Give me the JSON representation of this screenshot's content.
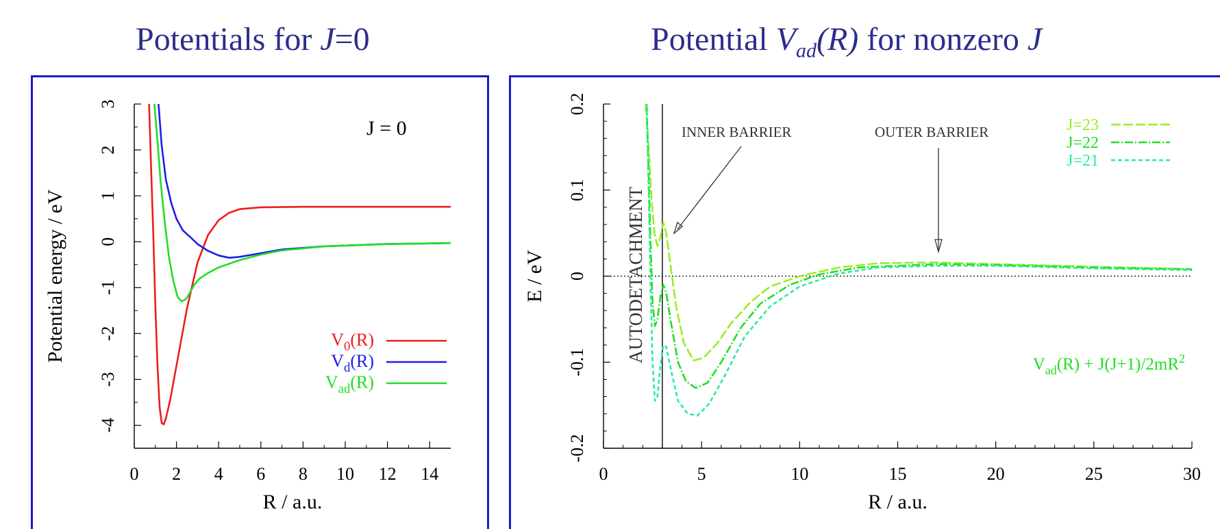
{
  "titles": {
    "left": {
      "pre": "Potentials for ",
      "var": "J",
      "post": "=0"
    },
    "right": {
      "pre": "Potential ",
      "var": "V",
      "sub": "ad",
      "arg": "(R)",
      "post": " for nonzero ",
      "var2": "J"
    }
  },
  "colors": {
    "title": "#2d2d8c",
    "frame": "#1a1acc",
    "v0": "#ee1c1c",
    "vd": "#1c1cee",
    "vad": "#22dd22",
    "j23": "#99ee22",
    "j22": "#22dd22",
    "j21": "#22ee99"
  },
  "chart_data": [
    {
      "type": "line",
      "xlabel": "R / a.u.",
      "ylabel": "Potential energy / eV",
      "xlim": [
        0,
        15
      ],
      "ylim": [
        -4.5,
        3
      ],
      "xticks": [
        "0",
        "2",
        "4",
        "6",
        "8",
        "10",
        "12",
        "14"
      ],
      "yticks": [
        "-4",
        "-3",
        "-2",
        "-1",
        "0",
        "1",
        "2",
        "3"
      ],
      "annotation": "J = 0",
      "legend_position": "bottom-right",
      "series": [
        {
          "name": "V0(R)",
          "label": "V",
          "sub": "0",
          "arg": "(R)",
          "color": "#ee1c1c",
          "points": [
            [
              0.7,
              3
            ],
            [
              0.8,
              1.6
            ],
            [
              0.9,
              0.2
            ],
            [
              1.0,
              -1.4
            ],
            [
              1.1,
              -2.7
            ],
            [
              1.2,
              -3.6
            ],
            [
              1.3,
              -3.95
            ],
            [
              1.4,
              -3.98
            ],
            [
              1.5,
              -3.85
            ],
            [
              1.7,
              -3.45
            ],
            [
              2.0,
              -2.7
            ],
            [
              2.5,
              -1.45
            ],
            [
              3.0,
              -0.45
            ],
            [
              3.5,
              0.15
            ],
            [
              4.0,
              0.47
            ],
            [
              4.5,
              0.63
            ],
            [
              5.0,
              0.71
            ],
            [
              6.0,
              0.75
            ],
            [
              8.0,
              0.76
            ],
            [
              15.0,
              0.76
            ]
          ]
        },
        {
          "name": "Vd(R)",
          "label": "V",
          "sub": "d",
          "arg": "(R)",
          "color": "#1c1cee",
          "points": [
            [
              1.15,
              3
            ],
            [
              1.3,
              2.1
            ],
            [
              1.5,
              1.35
            ],
            [
              1.75,
              0.85
            ],
            [
              2.0,
              0.5
            ],
            [
              2.3,
              0.25
            ],
            [
              2.7,
              0.08
            ],
            [
              3.0,
              -0.05
            ],
            [
              3.5,
              -0.2
            ],
            [
              4.0,
              -0.3
            ],
            [
              4.5,
              -0.35
            ],
            [
              5.0,
              -0.33
            ],
            [
              6.0,
              -0.25
            ],
            [
              7.0,
              -0.17
            ],
            [
              9.0,
              -0.1
            ],
            [
              12.0,
              -0.05
            ],
            [
              15.0,
              -0.03
            ]
          ]
        },
        {
          "name": "Vad(R)",
          "label": "V",
          "sub": "ad",
          "arg": "(R)",
          "color": "#22dd22",
          "points": [
            [
              0.95,
              3
            ],
            [
              1.1,
              2.2
            ],
            [
              1.25,
              1.3
            ],
            [
              1.45,
              0.4
            ],
            [
              1.65,
              -0.35
            ],
            [
              1.85,
              -0.85
            ],
            [
              2.05,
              -1.2
            ],
            [
              2.25,
              -1.3
            ],
            [
              2.45,
              -1.25
            ],
            [
              2.65,
              -1.1
            ],
            [
              2.85,
              -0.93
            ],
            [
              3.1,
              -0.8
            ],
            [
              3.5,
              -0.68
            ],
            [
              4.0,
              -0.56
            ],
            [
              5.0,
              -0.4
            ],
            [
              6.0,
              -0.28
            ],
            [
              7.0,
              -0.19
            ],
            [
              9.0,
              -0.1
            ],
            [
              12.0,
              -0.05
            ],
            [
              15.0,
              -0.03
            ]
          ]
        }
      ]
    },
    {
      "type": "line",
      "xlabel": "R / a.u.",
      "ylabel": "E / eV",
      "xlim": [
        0,
        30
      ],
      "ylim": [
        -0.2,
        0.2
      ],
      "xticks": [
        "0",
        "5",
        "10",
        "15",
        "20",
        "25",
        "30"
      ],
      "yticks": [
        "-0.2",
        "-0.1",
        "0",
        "0.1",
        "0.2"
      ],
      "reference_lines": {
        "horizontal_y": 0,
        "vertical_x": 3.0
      },
      "annotations": {
        "inner_barrier": "INNER BARRIER",
        "outer_barrier": "OUTER BARRIER",
        "autodetachment": "AUTODETACHMENT",
        "formula": {
          "v": "V",
          "sub": "ad",
          "text": "(R) + J(J+1)/2mR",
          "sup": "2"
        }
      },
      "legend_position": "top-right",
      "series": [
        {
          "name": "J=23",
          "color": "#99ee22",
          "dash": "14 4",
          "points": [
            [
              2.15,
              0.2
            ],
            [
              2.3,
              0.15
            ],
            [
              2.45,
              0.09
            ],
            [
              2.6,
              0.05
            ],
            [
              2.75,
              0.035
            ],
            [
              2.9,
              0.045
            ],
            [
              3.05,
              0.062
            ],
            [
              3.2,
              0.05
            ],
            [
              3.4,
              0.015
            ],
            [
              3.7,
              -0.035
            ],
            [
              4.1,
              -0.078
            ],
            [
              4.6,
              -0.098
            ],
            [
              5.1,
              -0.095
            ],
            [
              5.8,
              -0.078
            ],
            [
              6.5,
              -0.055
            ],
            [
              7.5,
              -0.03
            ],
            [
              8.5,
              -0.012
            ],
            [
              10.0,
              0.0
            ],
            [
              12.0,
              0.01
            ],
            [
              14.0,
              0.015
            ],
            [
              17.0,
              0.016
            ],
            [
              20.0,
              0.014
            ],
            [
              25.0,
              0.011
            ],
            [
              30.0,
              0.008
            ]
          ]
        },
        {
          "name": "J=22",
          "color": "#22dd22",
          "dash": "12 3 2 3",
          "points": [
            [
              2.2,
              0.2
            ],
            [
              2.3,
              0.12
            ],
            [
              2.4,
              0.04
            ],
            [
              2.5,
              -0.03
            ],
            [
              2.62,
              -0.058
            ],
            [
              2.75,
              -0.05
            ],
            [
              2.9,
              -0.025
            ],
            [
              3.05,
              -0.01
            ],
            [
              3.2,
              -0.02
            ],
            [
              3.45,
              -0.055
            ],
            [
              3.8,
              -0.1
            ],
            [
              4.2,
              -0.122
            ],
            [
              4.7,
              -0.13
            ],
            [
              5.3,
              -0.124
            ],
            [
              6.0,
              -0.1
            ],
            [
              7.0,
              -0.06
            ],
            [
              8.0,
              -0.032
            ],
            [
              9.5,
              -0.01
            ],
            [
              11.0,
              0.002
            ],
            [
              13.0,
              0.01
            ],
            [
              17.0,
              0.014
            ],
            [
              20.0,
              0.013
            ],
            [
              25.0,
              0.01
            ],
            [
              30.0,
              0.008
            ]
          ]
        },
        {
          "name": "J=21",
          "color": "#22ee99",
          "dash": "6 4",
          "points": [
            [
              2.2,
              0.2
            ],
            [
              2.3,
              0.1
            ],
            [
              2.4,
              -0.01
            ],
            [
              2.5,
              -0.1
            ],
            [
              2.62,
              -0.145
            ],
            [
              2.75,
              -0.14
            ],
            [
              2.9,
              -0.105
            ],
            [
              3.05,
              -0.08
            ],
            [
              3.2,
              -0.082
            ],
            [
              3.45,
              -0.11
            ],
            [
              3.8,
              -0.145
            ],
            [
              4.3,
              -0.16
            ],
            [
              4.8,
              -0.162
            ],
            [
              5.4,
              -0.148
            ],
            [
              6.2,
              -0.115
            ],
            [
              7.2,
              -0.07
            ],
            [
              8.5,
              -0.035
            ],
            [
              10.0,
              -0.012
            ],
            [
              12.0,
              0.003
            ],
            [
              14.0,
              0.01
            ],
            [
              17.0,
              0.012
            ],
            [
              20.0,
              0.012
            ],
            [
              25.0,
              0.009
            ],
            [
              30.0,
              0.007
            ]
          ]
        }
      ]
    }
  ]
}
